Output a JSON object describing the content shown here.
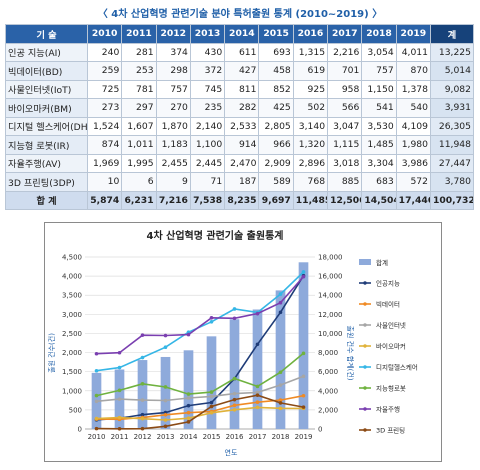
{
  "page_title": "〈 4차 산업혁명 관련기술 분야 특허출원 통계 (2010~2019) 〉",
  "table": {
    "header_label": "기 술",
    "years": [
      "2010",
      "2011",
      "2012",
      "2013",
      "2014",
      "2015",
      "2016",
      "2017",
      "2018",
      "2019"
    ],
    "total_header": "계",
    "rows": [
      {
        "label": "인공 지능(AI)",
        "values": [
          "240",
          "281",
          "374",
          "430",
          "611",
          "693",
          "1,315",
          "2,216",
          "3,054",
          "4,011"
        ],
        "total": "13,225"
      },
      {
        "label": "빅데이터(BD)",
        "values": [
          "259",
          "253",
          "298",
          "372",
          "427",
          "458",
          "619",
          "701",
          "757",
          "870"
        ],
        "total": "5,014"
      },
      {
        "label": "사물인터넷(IoT)",
        "values": [
          "725",
          "781",
          "757",
          "745",
          "811",
          "852",
          "925",
          "958",
          "1,150",
          "1,378"
        ],
        "total": "9,082"
      },
      {
        "label": "바이오마커(BM)",
        "values": [
          "273",
          "297",
          "270",
          "235",
          "282",
          "425",
          "502",
          "566",
          "541",
          "540"
        ],
        "total": "3,931"
      },
      {
        "label": "디지털 헬스케어(DH)",
        "values": [
          "1,524",
          "1,607",
          "1,870",
          "2,140",
          "2,533",
          "2,805",
          "3,140",
          "3,047",
          "3,530",
          "4,109"
        ],
        "total": "26,305"
      },
      {
        "label": "지능형 로봇(IR)",
        "values": [
          "874",
          "1,011",
          "1,183",
          "1,100",
          "914",
          "966",
          "1,320",
          "1,115",
          "1,485",
          "1,980"
        ],
        "total": "11,948"
      },
      {
        "label": "자율주행(AV)",
        "values": [
          "1,969",
          "1,995",
          "2,455",
          "2,445",
          "2,470",
          "2,909",
          "2,896",
          "3,018",
          "3,304",
          "3,986"
        ],
        "total": "27,447"
      },
      {
        "label": "3D 프린팅(3DP)",
        "values": [
          "10",
          "6",
          "9",
          "71",
          "187",
          "589",
          "768",
          "885",
          "683",
          "572"
        ],
        "total": "3,780"
      }
    ],
    "footer": {
      "label": "합 계",
      "values": [
        "5,874",
        "6,231",
        "7,216",
        "7,538",
        "8,235",
        "9,697",
        "11,485",
        "12,506",
        "14,504",
        "17,446"
      ],
      "total": "100,732"
    }
  },
  "chart_data": {
    "type": "bar+line",
    "title": "4차 산업혁명 관련기술 출원통계",
    "xlabel": "연도",
    "ylabel_left": "출원 건수(건)",
    "ylabel_right": "출원 건수 합계(건)",
    "categories": [
      "2010",
      "2011",
      "2012",
      "2013",
      "2014",
      "2015",
      "2016",
      "2017",
      "2018",
      "2019"
    ],
    "ylim_left": [
      0,
      4500
    ],
    "yticks_left": [
      "0",
      "500",
      "1,000",
      "1,500",
      "2,000",
      "2,500",
      "3,000",
      "3,500",
      "4,000",
      "4,500"
    ],
    "ylim_right": [
      0,
      18000
    ],
    "yticks_right": [
      "0",
      "2,000",
      "4,000",
      "6,000",
      "8,000",
      "10,000",
      "12,000",
      "14,000",
      "16,000",
      "18,000"
    ],
    "bar_series": {
      "name": "합계",
      "color": "#8eaadb",
      "values": [
        5874,
        6231,
        7216,
        7538,
        8235,
        9697,
        11485,
        12506,
        14504,
        17446
      ]
    },
    "line_series": [
      {
        "name": "인공지능",
        "color": "#1f3c78",
        "values": [
          240,
          281,
          374,
          430,
          611,
          693,
          1315,
          2216,
          3054,
          4011
        ]
      },
      {
        "name": "빅데이터",
        "color": "#f08a24",
        "values": [
          259,
          253,
          298,
          372,
          427,
          458,
          619,
          701,
          757,
          870
        ]
      },
      {
        "name": "사물인터넷",
        "color": "#a6a6a6",
        "values": [
          725,
          781,
          757,
          745,
          811,
          852,
          925,
          958,
          1150,
          1378
        ]
      },
      {
        "name": "바이오마커",
        "color": "#e0b23a",
        "values": [
          273,
          297,
          270,
          235,
          282,
          425,
          502,
          566,
          541,
          540
        ]
      },
      {
        "name": "디지털헬스케어",
        "color": "#35b6e6",
        "values": [
          1524,
          1607,
          1870,
          2140,
          2533,
          2805,
          3140,
          3047,
          3530,
          4109
        ]
      },
      {
        "name": "지능형로봇",
        "color": "#6fb23f",
        "values": [
          874,
          1011,
          1183,
          1100,
          914,
          966,
          1320,
          1115,
          1485,
          1980
        ]
      },
      {
        "name": "자율주행",
        "color": "#7a3fb0",
        "values": [
          1969,
          1995,
          2455,
          2445,
          2470,
          2909,
          2896,
          3018,
          3304,
          3986
        ]
      },
      {
        "name": "3D 프린팅",
        "color": "#8b4a14",
        "values": [
          10,
          6,
          9,
          71,
          187,
          589,
          768,
          885,
          683,
          572
        ]
      }
    ],
    "legend_position": "right"
  }
}
